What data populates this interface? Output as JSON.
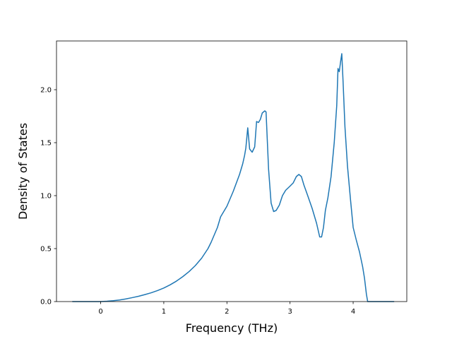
{
  "chart_data": {
    "type": "line",
    "title": "",
    "xlabel": "Frequency (THz)",
    "ylabel": "Density of States",
    "xlim": [
      -0.7,
      4.85
    ],
    "ylim": [
      0.0,
      2.46
    ],
    "xticks": [
      0,
      1,
      2,
      3,
      4
    ],
    "yticks": [
      0.0,
      0.5,
      1.0,
      1.5,
      2.0
    ],
    "xtick_labels": [
      "0",
      "1",
      "2",
      "3",
      "4"
    ],
    "ytick_labels": [
      "0.0",
      "0.5",
      "1.0",
      "1.5",
      "2.0"
    ],
    "grid": false,
    "legend": "none",
    "series": [
      {
        "color": "#1f77b4",
        "x": [
          -0.45,
          0.0,
          0.1,
          0.2,
          0.3,
          0.4,
          0.5,
          0.6,
          0.7,
          0.8,
          0.9,
          1.0,
          1.1,
          1.2,
          1.3,
          1.4,
          1.5,
          1.6,
          1.7,
          1.75,
          1.8,
          1.85,
          1.9,
          2.0,
          2.1,
          2.2,
          2.25,
          2.28,
          2.3,
          2.33,
          2.36,
          2.4,
          2.44,
          2.47,
          2.5,
          2.53,
          2.56,
          2.6,
          2.62,
          2.66,
          2.7,
          2.74,
          2.78,
          2.83,
          2.88,
          2.93,
          3.0,
          3.05,
          3.1,
          3.14,
          3.18,
          3.22,
          3.28,
          3.35,
          3.42,
          3.47,
          3.5,
          3.53,
          3.56,
          3.6,
          3.65,
          3.7,
          3.74,
          3.76,
          3.78,
          3.8,
          3.82,
          3.84,
          3.87,
          3.91,
          3.96,
          4.0,
          4.05,
          4.1,
          4.15,
          4.18,
          4.21,
          4.23,
          4.35,
          4.5,
          4.65
        ],
        "y": [
          0.0,
          0.0,
          0.003,
          0.008,
          0.015,
          0.025,
          0.037,
          0.05,
          0.066,
          0.083,
          0.104,
          0.128,
          0.158,
          0.193,
          0.235,
          0.283,
          0.34,
          0.41,
          0.5,
          0.56,
          0.63,
          0.7,
          0.8,
          0.9,
          1.04,
          1.2,
          1.3,
          1.38,
          1.45,
          1.64,
          1.44,
          1.41,
          1.46,
          1.7,
          1.69,
          1.72,
          1.78,
          1.8,
          1.79,
          1.25,
          0.93,
          0.85,
          0.86,
          0.91,
          1.0,
          1.05,
          1.09,
          1.12,
          1.18,
          1.2,
          1.18,
          1.1,
          1.0,
          0.88,
          0.74,
          0.61,
          0.61,
          0.7,
          0.86,
          0.98,
          1.18,
          1.5,
          1.85,
          2.2,
          2.17,
          2.26,
          2.34,
          2.08,
          1.65,
          1.28,
          0.95,
          0.7,
          0.58,
          0.47,
          0.33,
          0.22,
          0.07,
          0.0,
          0.0,
          0.0,
          0.0
        ]
      }
    ]
  }
}
